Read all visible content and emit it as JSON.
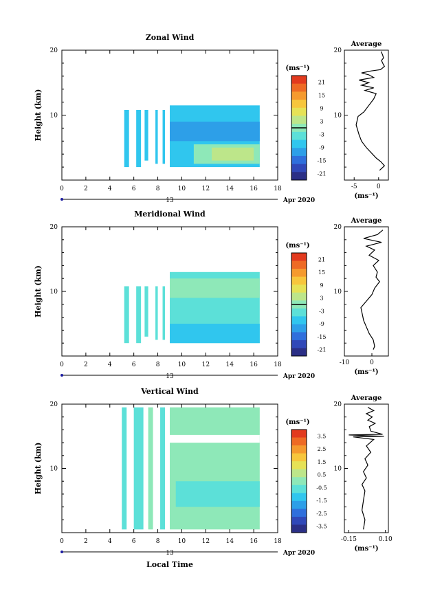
{
  "colors": {
    "scale": [
      "#2b2f86",
      "#3048b8",
      "#2f6fdc",
      "#2d9fe8",
      "#30c6ee",
      "#5ce0d8",
      "#8ee8b8",
      "#bde68a",
      "#e6e256",
      "#f7c63c",
      "#f59a2e",
      "#ee6a24",
      "#e23a1e"
    ],
    "contour": "#000000",
    "axis": "#000000",
    "axis_marker": "#1a1aa0"
  },
  "chart_data": [
    {
      "id": "zonal",
      "type": "heatmap",
      "title": "Zonal Wind",
      "ylabel": "Height (km)",
      "xlim": [
        0,
        18
      ],
      "ylim": [
        0,
        20
      ],
      "xticks": [
        "0",
        "2",
        "4",
        "6",
        "8",
        "10",
        "12",
        "14",
        "16",
        "18"
      ],
      "yticks": [
        {
          "v": 20,
          "label": "20"
        },
        {
          "v": 10,
          "label": "10"
        }
      ],
      "date_marker": "13",
      "date_label": "Apr 2020",
      "colorbar": {
        "unit": "(ms⁻¹)",
        "labels": [
          "21",
          "15",
          "9",
          "3",
          "-3",
          "-9",
          "-15",
          "-21"
        ],
        "min": -24,
        "max": 24,
        "line_at": 0
      },
      "columns": [
        {
          "x": [
            5.2,
            5.6
          ],
          "y": [
            2,
            10.8
          ],
          "c": 4
        },
        {
          "x": [
            6.2,
            6.6
          ],
          "y": [
            2,
            10.8
          ],
          "c": 4
        },
        {
          "x": [
            6.9,
            7.2
          ],
          "y": [
            3,
            10.8
          ],
          "c": 4
        },
        {
          "x": [
            7.8,
            8.0
          ],
          "y": [
            2.5,
            10.8
          ],
          "c": 4
        },
        {
          "x": [
            8.4,
            8.6
          ],
          "y": [
            2.5,
            10.8
          ],
          "c": 4
        },
        {
          "x": [
            9.0,
            16.5
          ],
          "y": [
            2,
            11.5
          ],
          "c": 4
        },
        {
          "x": [
            9.0,
            16.5
          ],
          "y": [
            6,
            9
          ],
          "c": 3
        },
        {
          "x": [
            11,
            16.5
          ],
          "y": [
            2.5,
            5.5
          ],
          "c": 6
        },
        {
          "x": [
            12.5,
            16
          ],
          "y": [
            3,
            5
          ],
          "c": 7
        }
      ],
      "average": {
        "title": "Average",
        "xlabel": "(ms⁻¹)",
        "xlim": [
          -7,
          2
        ],
        "xticks": [
          {
            "v": -5,
            "label": "-5"
          },
          {
            "v": 0,
            "label": "0"
          }
        ],
        "yticks": [
          {
            "v": 20,
            "label": "20"
          },
          {
            "v": 10,
            "label": "10"
          }
        ],
        "x": [
          0.5,
          0.8,
          1.0,
          0.6,
          0.9,
          1.2,
          0.4,
          -1.5,
          -3.5,
          -2.0,
          -1.0,
          -4.0,
          -2.0,
          -3.5,
          -1.0,
          -2.8,
          -0.5,
          -1.0,
          -2.0,
          -3.0,
          -4.2,
          -4.6,
          -4.0,
          -3.5,
          -2.5,
          -1.5,
          -0.5,
          0.5,
          1.2,
          0.2
        ],
        "y": [
          19.8,
          19.3,
          18.8,
          18.4,
          17.9,
          17.5,
          17.0,
          16.8,
          16.5,
          16.2,
          15.8,
          15.4,
          15.0,
          14.6,
          14.2,
          13.8,
          13.3,
          12.5,
          11.5,
          10.5,
          9.8,
          8.5,
          7.0,
          6.0,
          5.0,
          4.2,
          3.4,
          2.8,
          2.2,
          1.5
        ]
      }
    },
    {
      "id": "meridional",
      "type": "heatmap",
      "title": "Meridional Wind",
      "ylabel": "Height (km)",
      "xlim": [
        0,
        18
      ],
      "ylim": [
        0,
        20
      ],
      "xticks": [
        "0",
        "2",
        "4",
        "6",
        "8",
        "10",
        "12",
        "14",
        "16",
        "18"
      ],
      "yticks": [
        {
          "v": 20,
          "label": "20"
        },
        {
          "v": 10,
          "label": "10"
        }
      ],
      "date_marker": "13",
      "date_label": "Apr 2020",
      "colorbar": {
        "unit": "(ms⁻¹)",
        "labels": [
          "21",
          "15",
          "9",
          "3",
          "-3",
          "-9",
          "-15",
          "-21"
        ],
        "min": -24,
        "max": 24,
        "line_at": 0
      },
      "columns": [
        {
          "x": [
            5.2,
            5.6
          ],
          "y": [
            2,
            10.8
          ],
          "c": 5
        },
        {
          "x": [
            6.2,
            6.6
          ],
          "y": [
            2,
            10.8
          ],
          "c": 5
        },
        {
          "x": [
            6.9,
            7.2
          ],
          "y": [
            3,
            10.8
          ],
          "c": 5
        },
        {
          "x": [
            7.8,
            8.0
          ],
          "y": [
            2.5,
            10.8
          ],
          "c": 5
        },
        {
          "x": [
            8.4,
            8.6
          ],
          "y": [
            2.5,
            10.8
          ],
          "c": 5
        },
        {
          "x": [
            9.0,
            16.5
          ],
          "y": [
            2,
            13
          ],
          "c": 5
        },
        {
          "x": [
            9.0,
            16.5
          ],
          "y": [
            9,
            12
          ],
          "c": 6
        },
        {
          "x": [
            9.0,
            16.5
          ],
          "y": [
            2,
            5
          ],
          "c": 4
        }
      ],
      "average": {
        "title": "Average",
        "xlabel": "(ms⁻¹)",
        "xlim": [
          -10,
          6
        ],
        "xticks": [
          {
            "v": -10,
            "label": "-10"
          },
          {
            "v": 0,
            "label": "0"
          }
        ],
        "yticks": [
          {
            "v": 20,
            "label": "20"
          },
          {
            "v": 10,
            "label": "10"
          }
        ],
        "x": [
          4.0,
          2.0,
          -3.0,
          3.5,
          -2.0,
          1.0,
          -1.0,
          2.5,
          0.5,
          2.0,
          1.5,
          2.8,
          1.0,
          0.0,
          -2.0,
          -4.0,
          -3.5,
          -3.0,
          -2.0,
          -1.0,
          0.5,
          1.0,
          0.5
        ],
        "y": [
          19.5,
          18.8,
          18.2,
          17.6,
          17.0,
          16.4,
          15.6,
          14.8,
          14.0,
          13.0,
          12.2,
          11.5,
          10.5,
          9.5,
          8.5,
          7.5,
          6.5,
          5.5,
          4.5,
          3.5,
          2.5,
          1.5,
          1.0
        ]
      }
    },
    {
      "id": "vertical",
      "type": "heatmap",
      "title": "Vertical Wind",
      "ylabel": "Height (km)",
      "xlabel": "Local Time",
      "xlim": [
        0,
        18
      ],
      "ylim": [
        0,
        20
      ],
      "xticks": [
        "0",
        "2",
        "4",
        "6",
        "8",
        "10",
        "12",
        "14",
        "16",
        "18"
      ],
      "yticks": [
        {
          "v": 20,
          "label": "20"
        },
        {
          "v": 10,
          "label": "10"
        }
      ],
      "date_marker": "13",
      "date_label": "Apr 2020",
      "colorbar": {
        "unit": "(ms⁻¹)",
        "labels": [
          "3.5",
          "2.5",
          "1.5",
          "0.5",
          "-0.5",
          "-1.5",
          "-2.5",
          "-3.5"
        ],
        "min": -4,
        "max": 4,
        "line_at": null
      },
      "columns": [
        {
          "x": [
            5.0,
            5.4
          ],
          "y": [
            0.5,
            19.5
          ],
          "c": 5
        },
        {
          "x": [
            6.0,
            6.8
          ],
          "y": [
            0.5,
            19.5
          ],
          "c": 5
        },
        {
          "x": [
            7.2,
            7.6
          ],
          "y": [
            0.5,
            19.5
          ],
          "c": 6
        },
        {
          "x": [
            8.2,
            8.6
          ],
          "y": [
            0.5,
            19.5
          ],
          "c": 5
        },
        {
          "x": [
            9.0,
            16.5
          ],
          "y": [
            0.5,
            19.5
          ],
          "c": 6
        },
        {
          "x": [
            9.0,
            16.5
          ],
          "y": [
            14,
            15.2
          ],
          "c": -1
        },
        {
          "x": [
            9.5,
            16.5
          ],
          "y": [
            4,
            8
          ],
          "c": 5
        }
      ],
      "average": {
        "title": "Average",
        "xlabel": "(ms⁻¹)",
        "xlim": [
          -0.18,
          0.12
        ],
        "xticks": [
          {
            "v": -0.15,
            "label": "-0.15"
          },
          {
            "v": 0.1,
            "label": "0.10"
          }
        ],
        "yticks": [
          {
            "v": 20,
            "label": "20"
          },
          {
            "v": 10,
            "label": "10"
          }
        ],
        "x": [
          -0.02,
          0.02,
          -0.03,
          0.01,
          -0.02,
          0.03,
          -0.01,
          0.0,
          0.08,
          -0.15,
          0.09,
          -0.12,
          0.02,
          -0.03,
          0.0,
          -0.04,
          -0.02,
          -0.05,
          -0.03,
          -0.06,
          -0.04,
          -0.05,
          -0.06,
          -0.04,
          -0.05
        ],
        "y": [
          19.5,
          19.0,
          18.5,
          18.0,
          17.5,
          17.0,
          16.5,
          15.8,
          15.3,
          15.2,
          15.0,
          14.9,
          14.5,
          13.5,
          12.5,
          11.5,
          10.5,
          9.5,
          8.5,
          7.5,
          6.5,
          5.0,
          3.5,
          2.0,
          0.5
        ]
      }
    }
  ]
}
